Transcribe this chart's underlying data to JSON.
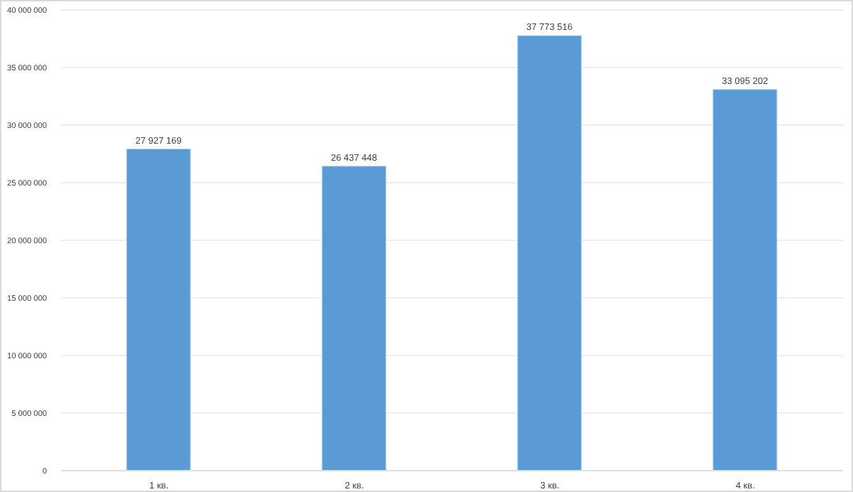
{
  "chart_data": {
    "type": "bar",
    "categories": [
      "1 кв.",
      "2 кв.",
      "3 кв.",
      "4 кв."
    ],
    "values": [
      27927169,
      26437448,
      37773516,
      33095202
    ],
    "value_labels": [
      "27 927 169",
      "26 437 448",
      "37 773 516",
      "33 095 202"
    ],
    "color": "#5b9bd5",
    "ylim": [
      0,
      40000000
    ],
    "yticks": [
      {
        "value": 0,
        "label": "0"
      },
      {
        "value": 5000000,
        "label": "5 000 000"
      },
      {
        "value": 10000000,
        "label": "10 000 000"
      },
      {
        "value": 15000000,
        "label": "15 000 000"
      },
      {
        "value": 20000000,
        "label": "20 000 000"
      },
      {
        "value": 25000000,
        "label": "25 000 000"
      },
      {
        "value": 30000000,
        "label": "30 000 000"
      },
      {
        "value": 35000000,
        "label": "35 000 000"
      },
      {
        "value": 40000000,
        "label": "40 000 000"
      }
    ],
    "grid": "y"
  }
}
